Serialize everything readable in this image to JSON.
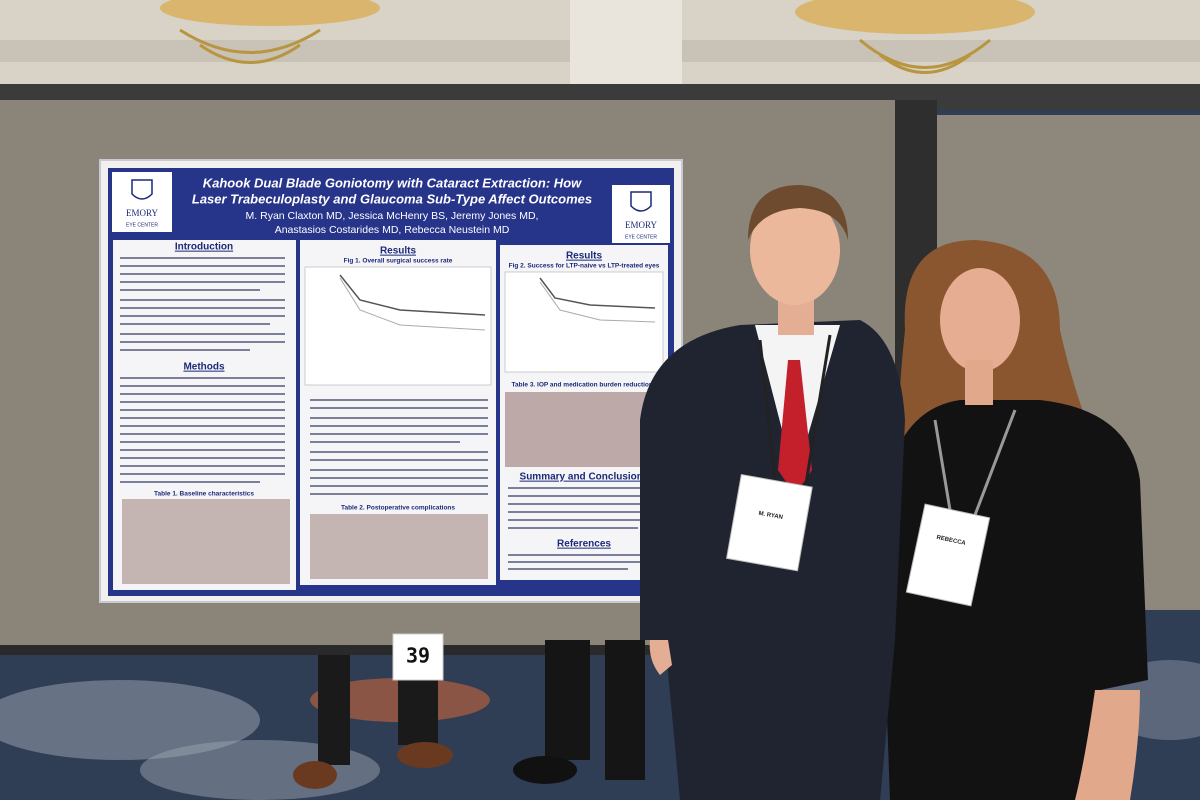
{
  "poster": {
    "title_line1": "Kahook Dual Blade Goniotomy with Cataract Extraction: How",
    "title_line2": "Laser Trabeculoplasty and Glaucoma Sub-Type Affect Outcomes",
    "authors_line1": "M. Ryan Claxton MD, Jessica McHenry BS, Jeremy Jones MD,",
    "authors_line2": "Anastasios Costarides MD, Rebecca Neustein MD",
    "logo_name": "EMORY",
    "logo_sub": "EYE CENTER",
    "sections": {
      "introduction": "Introduction",
      "methods": "Methods",
      "results": "Results",
      "summary": "Summary and Conclusions",
      "references": "References"
    },
    "captions": {
      "fig1": "Fig 1. Overall surgical success rate",
      "fig2": "Fig 2. Success for LTP-naive vs LTP-treated eyes",
      "table1": "Table 1. Baseline characteristics",
      "table2": "Table 2. Postoperative complications",
      "table3": "Table 3. IOP and medication burden reductions"
    }
  },
  "sign_number": "39",
  "badges": {
    "left": "M. RYAN",
    "right": "REBECCA"
  }
}
